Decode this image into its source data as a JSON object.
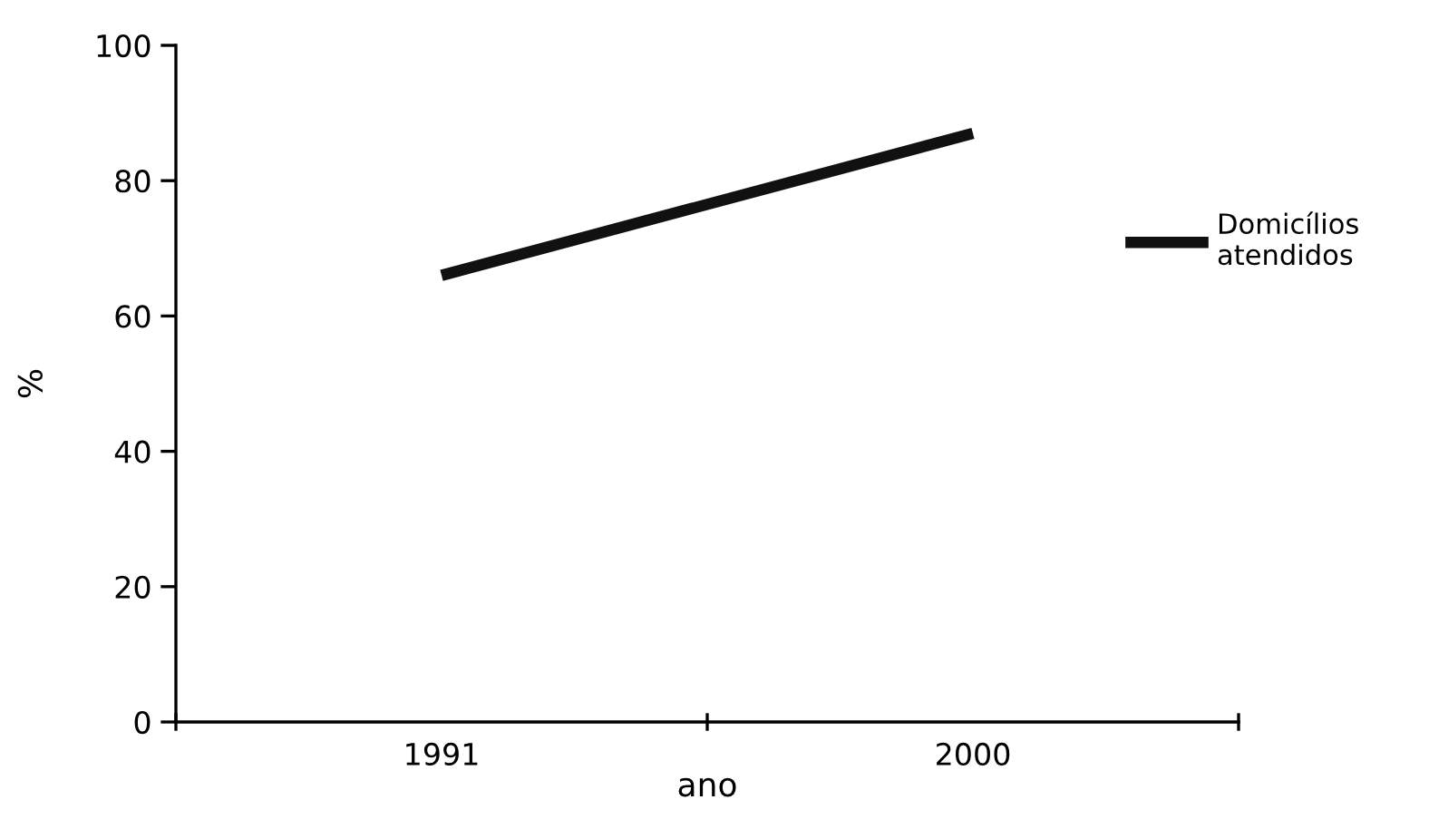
{
  "chart_data": {
    "type": "line",
    "xlabel": "ano",
    "ylabel": "%",
    "x": [
      1991,
      2000
    ],
    "xlim": [
      1986.5,
      2004.5
    ],
    "xticks": [
      {
        "value": 1986.5,
        "label": null
      },
      1991,
      {
        "value": 1995.5,
        "label": null
      },
      2000,
      {
        "value": 2004.5,
        "label": null
      }
    ],
    "series": [
      {
        "name": "Domicílios\natendidos",
        "color": "#111111",
        "values": [
          66,
          87
        ]
      }
    ],
    "ylim": [
      0,
      100
    ],
    "yticks": [
      0,
      20,
      40,
      60,
      80,
      100
    ],
    "grid": false,
    "legend": "right",
    "marker": "none",
    "line_style": "solid"
  }
}
